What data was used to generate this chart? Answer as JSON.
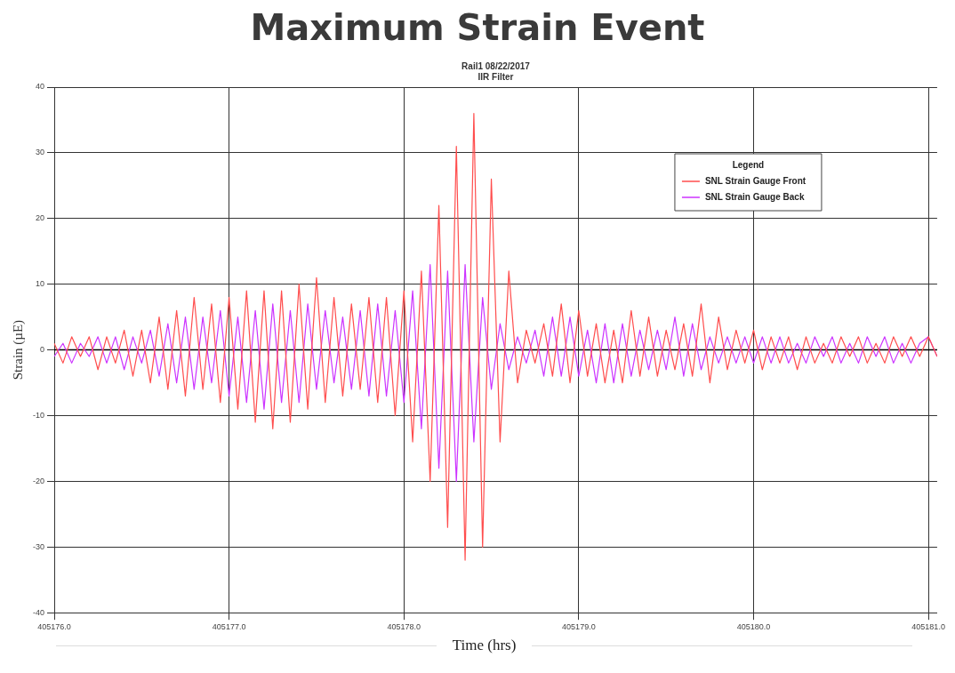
{
  "chart_data": {
    "type": "line",
    "title": "Maximum Strain Event",
    "subtitle": "Rail1 08/22/2017\nIIR Filter",
    "xlabel": "Time (hrs)",
    "ylabel": "Strain (µE)",
    "legend_title": "Legend",
    "legend": "top right",
    "grid": true,
    "marker": "none",
    "line_style": "solid",
    "x": [
      405176.0,
      405176.05,
      405176.1,
      405176.15,
      405176.2,
      405176.25,
      405176.3,
      405176.35,
      405176.4,
      405176.45,
      405176.5,
      405176.55,
      405176.6,
      405176.65,
      405176.7,
      405176.75,
      405176.8,
      405176.85,
      405176.9,
      405176.95,
      405177.0,
      405177.05,
      405177.1,
      405177.15,
      405177.2,
      405177.25,
      405177.3,
      405177.35,
      405177.4,
      405177.45,
      405177.5,
      405177.55,
      405177.6,
      405177.65,
      405177.7,
      405177.75,
      405177.8,
      405177.85,
      405177.9,
      405177.95,
      405178.0,
      405178.05,
      405178.1,
      405178.15,
      405178.2,
      405178.25,
      405178.3,
      405178.35,
      405178.4,
      405178.45,
      405178.5,
      405178.55,
      405178.6,
      405178.65,
      405178.7,
      405178.75,
      405178.8,
      405178.85,
      405178.9,
      405178.95,
      405179.0,
      405179.05,
      405179.1,
      405179.15,
      405179.2,
      405179.25,
      405179.3,
      405179.35,
      405179.4,
      405179.45,
      405179.5,
      405179.55,
      405179.6,
      405179.65,
      405179.7,
      405179.75,
      405179.8,
      405179.85,
      405179.9,
      405179.95,
      405180.0,
      405180.05,
      405180.1,
      405180.15,
      405180.2,
      405180.25,
      405180.3,
      405180.35,
      405180.4,
      405180.45,
      405180.5,
      405180.55,
      405180.6,
      405180.65,
      405180.7,
      405180.75,
      405180.8,
      405180.85,
      405180.9,
      405180.95,
      405181.0,
      405181.05
    ],
    "series": [
      {
        "name": "SNL Strain Gauge Front",
        "color": "#ff4d4d",
        "values": [
          1,
          -2,
          2,
          -1,
          2,
          -3,
          2,
          -2,
          3,
          -4,
          3,
          -5,
          5,
          -6,
          6,
          -7,
          8,
          -6,
          7,
          -8,
          8,
          -9,
          9,
          -11,
          9,
          -12,
          9,
          -11,
          10,
          -9,
          11,
          -8,
          8,
          -7,
          7,
          -6,
          8,
          -8,
          8,
          -10,
          9,
          -14,
          12,
          -20,
          22,
          -27,
          31,
          -32,
          36,
          -30,
          26,
          -14,
          12,
          -5,
          3,
          -2,
          4,
          -4,
          7,
          -5,
          6,
          -4,
          4,
          -5,
          3,
          -5,
          6,
          -4,
          5,
          -4,
          3,
          -3,
          4,
          -4,
          7,
          -5,
          5,
          -3,
          3,
          -2,
          3,
          -3,
          2,
          -2,
          2,
          -3,
          2,
          -2,
          1,
          -2,
          2,
          -1,
          2,
          -2,
          1,
          -2,
          2,
          -1,
          2,
          -1,
          2,
          -1
        ]
      },
      {
        "name": "SNL Strain Gauge Back",
        "color": "#cc33ff",
        "values": [
          -1,
          1,
          -2,
          1,
          -1,
          2,
          -2,
          2,
          -3,
          2,
          -2,
          3,
          -4,
          4,
          -5,
          5,
          -6,
          5,
          -5,
          6,
          -7,
          5,
          -8,
          6,
          -9,
          7,
          -8,
          6,
          -8,
          7,
          -6,
          6,
          -5,
          5,
          -6,
          6,
          -7,
          7,
          -7,
          6,
          -8,
          9,
          -12,
          13,
          -18,
          12,
          -20,
          13,
          -14,
          8,
          -6,
          4,
          -3,
          2,
          -2,
          3,
          -4,
          5,
          -4,
          5,
          -4,
          3,
          -5,
          4,
          -5,
          4,
          -4,
          3,
          -3,
          3,
          -3,
          5,
          -4,
          4,
          -3,
          2,
          -2,
          2,
          -2,
          2,
          -2,
          2,
          -2,
          2,
          -2,
          1,
          -2,
          2,
          -1,
          2,
          -2,
          1,
          -2,
          2,
          -1,
          2,
          -2,
          1,
          -2,
          1,
          2,
          -1
        ]
      }
    ],
    "xlim": [
      405176.0,
      405181.05
    ],
    "xticks": [
      {
        "value": 405176,
        "label": "405176.0"
      },
      {
        "value": 405177,
        "label": "405177.0"
      },
      {
        "value": 405178,
        "label": "405178.0"
      },
      {
        "value": 405179,
        "label": "405179.0"
      },
      {
        "value": 405180,
        "label": "405180.0"
      },
      {
        "value": 405181,
        "label": "405181.0"
      }
    ],
    "ylim": [
      -40,
      40
    ],
    "yticks": [
      -40,
      -30,
      -20,
      -10,
      0,
      10,
      20,
      30,
      40
    ],
    "ref_lines": [
      {
        "axis": "y",
        "value": 0,
        "color": "#000000"
      }
    ]
  }
}
